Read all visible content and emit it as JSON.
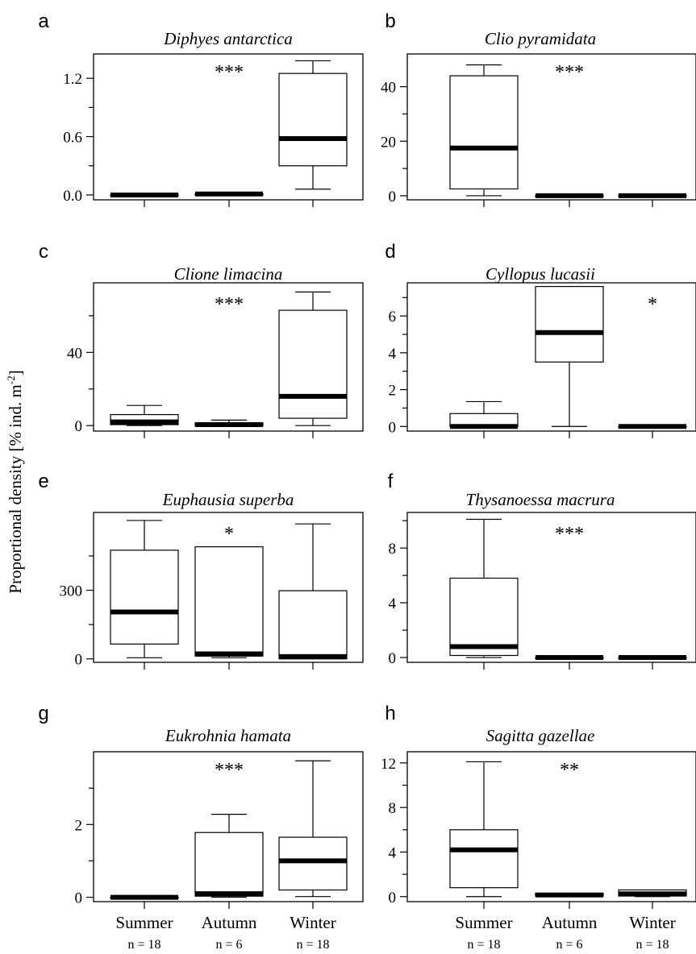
{
  "ylabel": "Proportional density [% ind. m",
  "ylabel_sup": "-2",
  "ylabel_end": "]",
  "x_categories": [
    "Summer",
    "Autumn",
    "Winter"
  ],
  "x_counts": [
    "n = 18",
    "n = 6",
    "n = 18"
  ],
  "chart_data": [
    {
      "type": "box",
      "panel": "a",
      "title": "Diphyes antarctica",
      "significance": "***",
      "ylim": [
        -0.05,
        1.45
      ],
      "yticks": [
        0.0,
        0.6,
        1.2
      ],
      "ytick_labels": [
        "0.0",
        "0.6",
        "1.2"
      ],
      "yminor": [
        0.3,
        0.9
      ],
      "boxes": [
        {
          "group": "Summer",
          "whisker_low": 0,
          "q1": 0,
          "median": 0,
          "q3": 0,
          "whisker_high": 0
        },
        {
          "group": "Autumn",
          "whisker_low": 0,
          "q1": 0,
          "median": 0.01,
          "q3": 0.01,
          "whisker_high": 0.01
        },
        {
          "group": "Winter",
          "whisker_low": 0.06,
          "q1": 0.3,
          "median": 0.58,
          "q3": 1.25,
          "whisker_high": 1.38
        }
      ]
    },
    {
      "type": "box",
      "panel": "b",
      "title": "Clio pyramidata",
      "significance": "***",
      "ylim": [
        -1.5,
        52
      ],
      "yticks": [
        0,
        20,
        40
      ],
      "ytick_labels": [
        "0",
        "20",
        "40"
      ],
      "yminor": [
        10,
        30
      ],
      "boxes": [
        {
          "group": "Summer",
          "whisker_low": 0,
          "q1": 2.5,
          "median": 17.5,
          "q3": 44,
          "whisker_high": 48
        },
        {
          "group": "Autumn",
          "whisker_low": 0,
          "q1": 0,
          "median": 0,
          "q3": 0,
          "whisker_high": 0
        },
        {
          "group": "Winter",
          "whisker_low": 0,
          "q1": 0,
          "median": 0,
          "q3": 0,
          "whisker_high": 0
        }
      ]
    },
    {
      "type": "box",
      "panel": "c",
      "title": "Clione limacina",
      "significance": "***",
      "ylim": [
        -3,
        78
      ],
      "yticks": [
        0,
        40
      ],
      "ytick_labels": [
        "0",
        "40"
      ],
      "yminor": [
        20,
        60
      ],
      "boxes": [
        {
          "group": "Summer",
          "whisker_low": 0,
          "q1": 0.5,
          "median": 2,
          "q3": 6,
          "whisker_high": 11
        },
        {
          "group": "Autumn",
          "whisker_low": 0,
          "q1": 0,
          "median": 0.5,
          "q3": 1.5,
          "whisker_high": 3
        },
        {
          "group": "Winter",
          "whisker_low": 0,
          "q1": 4,
          "median": 16,
          "q3": 63,
          "whisker_high": 73
        }
      ]
    },
    {
      "type": "box",
      "panel": "d",
      "title": "Cyllopus lucasii",
      "significance": "*",
      "ylim": [
        -0.25,
        7.8
      ],
      "yticks": [
        0,
        2,
        4,
        6
      ],
      "ytick_labels": [
        "0",
        "2",
        "4",
        "6"
      ],
      "yminor": [
        1,
        3,
        5,
        7
      ],
      "boxes": [
        {
          "group": "Summer",
          "whisker_low": 0,
          "q1": 0,
          "median": 0,
          "q3": 0.7,
          "whisker_high": 1.35
        },
        {
          "group": "Autumn",
          "whisker_low": 0,
          "q1": 3.5,
          "median": 5.1,
          "q3": 7.6,
          "whisker_high": 7.6
        },
        {
          "group": "Winter",
          "whisker_low": 0,
          "q1": 0,
          "median": 0,
          "q3": 0,
          "whisker_high": 0
        }
      ]
    },
    {
      "type": "box",
      "panel": "e",
      "title": "Euphausia superba",
      "significance": "*",
      "ylim": [
        -15,
        640
      ],
      "yticks": [
        0,
        300
      ],
      "ytick_labels": [
        "0",
        "300"
      ],
      "yminor": [
        150,
        450
      ],
      "boxes": [
        {
          "group": "Summer",
          "whisker_low": 5,
          "q1": 65,
          "median": 205,
          "q3": 475,
          "whisker_high": 605
        },
        {
          "group": "Autumn",
          "whisker_low": 5,
          "q1": 12,
          "median": 22,
          "q3": 490,
          "whisker_high": 490
        },
        {
          "group": "Winter",
          "whisker_low": 0,
          "q1": 0,
          "median": 10,
          "q3": 298,
          "whisker_high": 590
        }
      ]
    },
    {
      "type": "box",
      "panel": "f",
      "title": "Thysanoessa macrura",
      "significance": "***",
      "ylim": [
        -0.35,
        10.6
      ],
      "yticks": [
        0,
        4,
        8
      ],
      "ytick_labels": [
        "0",
        "4",
        "8"
      ],
      "yminor": [
        2,
        6,
        10
      ],
      "boxes": [
        {
          "group": "Summer",
          "whisker_low": 0,
          "q1": 0.15,
          "median": 0.8,
          "q3": 5.8,
          "whisker_high": 10.1
        },
        {
          "group": "Autumn",
          "whisker_low": 0,
          "q1": 0,
          "median": 0,
          "q3": 0,
          "whisker_high": 0
        },
        {
          "group": "Winter",
          "whisker_low": 0,
          "q1": 0,
          "median": 0,
          "q3": 0,
          "whisker_high": 0
        }
      ]
    },
    {
      "type": "box",
      "panel": "g",
      "title": "Eukrohnia hamata",
      "significance": "***",
      "ylim": [
        -0.12,
        4.0
      ],
      "yticks": [
        0,
        2
      ],
      "ytick_labels": [
        "0",
        "2"
      ],
      "yminor": [
        1,
        3
      ],
      "boxes": [
        {
          "group": "Summer",
          "whisker_low": 0,
          "q1": 0,
          "median": 0,
          "q3": 0,
          "whisker_high": 0
        },
        {
          "group": "Autumn",
          "whisker_low": 0,
          "q1": 0.03,
          "median": 0.1,
          "q3": 1.78,
          "whisker_high": 2.28
        },
        {
          "group": "Winter",
          "whisker_low": 0.02,
          "q1": 0.2,
          "median": 1.0,
          "q3": 1.65,
          "whisker_high": 3.75
        }
      ]
    },
    {
      "type": "box",
      "panel": "h",
      "title": "Sagitta gazellae",
      "significance": "**",
      "ylim": [
        -0.45,
        13
      ],
      "yticks": [
        0,
        4,
        8,
        12
      ],
      "ytick_labels": [
        "0",
        "4",
        "8",
        "12"
      ],
      "yminor": [
        2,
        6,
        10
      ],
      "boxes": [
        {
          "group": "Summer",
          "whisker_low": 0,
          "q1": 0.8,
          "median": 4.2,
          "q3": 6.0,
          "whisker_high": 12.1
        },
        {
          "group": "Autumn",
          "whisker_low": 0,
          "q1": 0.05,
          "median": 0.15,
          "q3": 0.3,
          "whisker_high": 0.3
        },
        {
          "group": "Winter",
          "whisker_low": 0,
          "q1": 0.05,
          "median": 0.25,
          "q3": 0.6,
          "whisker_high": 0.6
        }
      ]
    }
  ]
}
